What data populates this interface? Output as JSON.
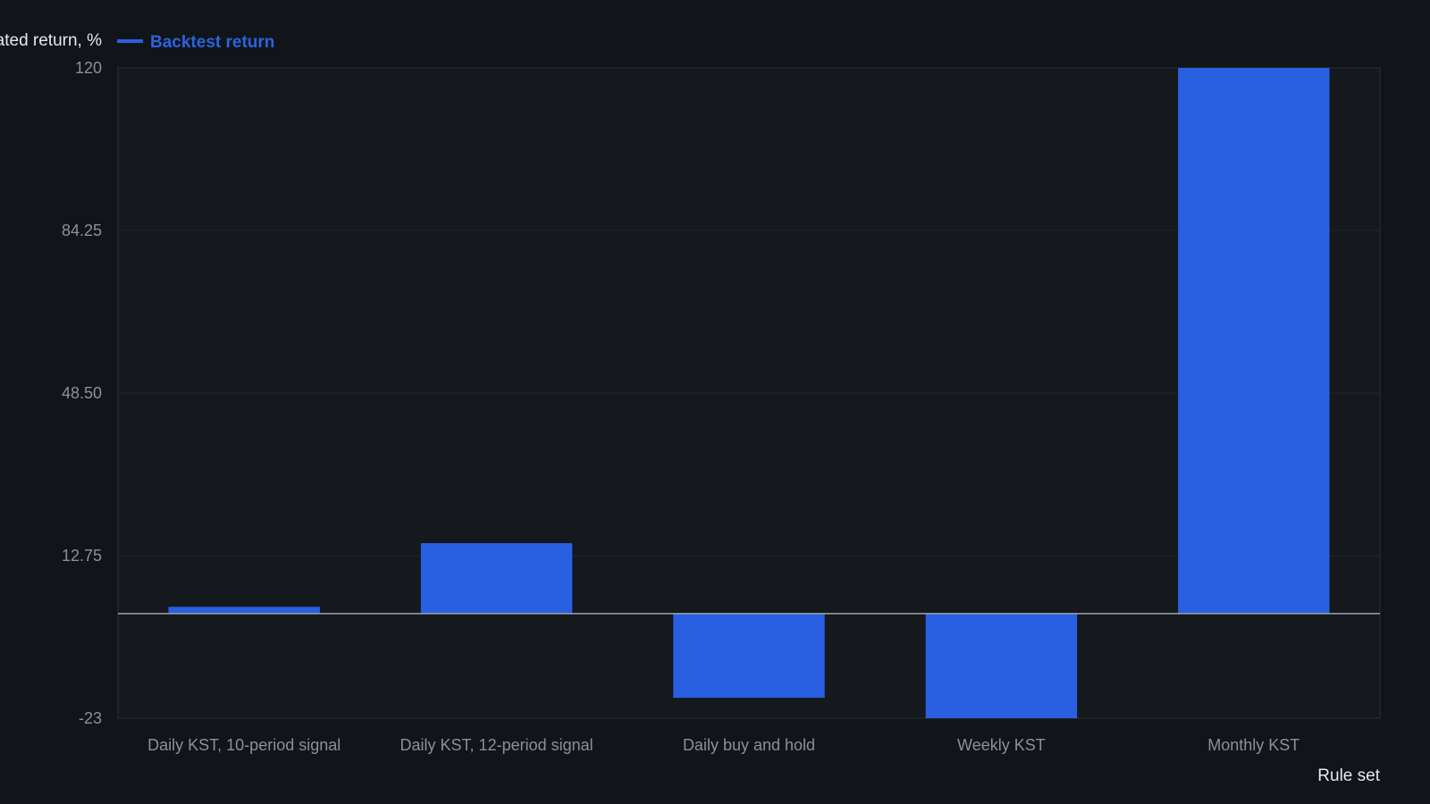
{
  "chart_data": {
    "type": "bar",
    "categories": [
      "Daily KST, 10-period signal",
      "Daily KST, 12-period signal",
      "Daily buy and hold",
      "Weekly KST",
      "Monthly KST"
    ],
    "series": [
      {
        "name": "Backtest return",
        "values": [
          1.5,
          15.5,
          -18.5,
          -23,
          120
        ]
      }
    ],
    "ylabel": "Simulated return, %",
    "xlabel": "Rule set",
    "ylim": [
      -23,
      120
    ],
    "yticks": [
      "120",
      "84.25",
      "48.50",
      "12.75",
      "-23"
    ],
    "ytick_values": [
      120,
      84.25,
      48.5,
      12.75,
      -23
    ],
    "grid": true,
    "legend_position": "top-left",
    "colors": {
      "background": "#111419",
      "plot_background": "#15181d",
      "bar": "#2860e1",
      "grid": "#23262c",
      "zero_line": "#9ea3aa",
      "frame": "#2b2e34"
    }
  }
}
